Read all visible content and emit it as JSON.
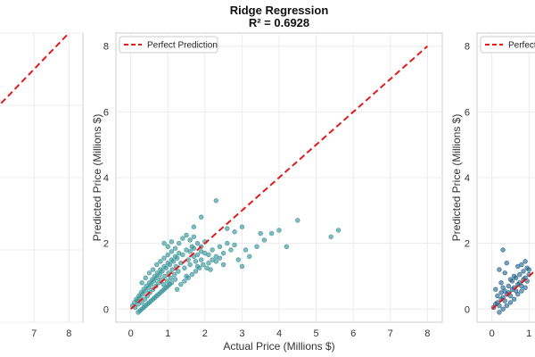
{
  "chart_data": [
    {
      "type": "scatter",
      "panel": "left",
      "title": "",
      "xlabel": "",
      "ylabel": "",
      "xticks": [
        7,
        8
      ],
      "yticks": [],
      "xlim": [
        0,
        8
      ],
      "ylim": [
        0,
        8
      ],
      "reference_line": {
        "name": "Perfect Prediction",
        "x": [
          0,
          8
        ],
        "y": [
          0,
          8
        ],
        "color": "#e31a1c",
        "style": "dashed"
      },
      "series": [
        {
          "points": []
        }
      ]
    },
    {
      "type": "scatter",
      "panel": "center",
      "title": "Ridge Regression",
      "subtitle": "R² = 0.6928",
      "xlabel": "Actual Price (Millions $)",
      "ylabel": "Predicted Price (Millions $)",
      "xticks": [
        0,
        1,
        2,
        3,
        4,
        5,
        6,
        7,
        8
      ],
      "yticks": [
        0,
        2,
        4,
        6,
        8
      ],
      "xlim": [
        -0.4,
        8.4
      ],
      "ylim": [
        -0.4,
        8.4
      ],
      "grid": true,
      "legend": {
        "position": "top-left",
        "label": "Perfect Prediction"
      },
      "reference_line": {
        "name": "Perfect Prediction",
        "x": [
          0,
          8
        ],
        "y": [
          0,
          8
        ],
        "color": "#e31a1c",
        "style": "dashed"
      },
      "point_color": "#2f8f95",
      "series": [
        {
          "points": [
            [
              0.05,
              0.1
            ],
            [
              0.1,
              0.2
            ],
            [
              0.12,
              0.05
            ],
            [
              0.15,
              0.3
            ],
            [
              0.18,
              0.25
            ],
            [
              0.2,
              0.15
            ],
            [
              0.22,
              0.4
            ],
            [
              0.25,
              0.35
            ],
            [
              0.28,
              0.5
            ],
            [
              0.3,
              0.2
            ],
            [
              0.32,
              0.45
            ],
            [
              0.35,
              0.6
            ],
            [
              0.38,
              0.3
            ],
            [
              0.4,
              0.55
            ],
            [
              0.42,
              0.7
            ],
            [
              0.45,
              0.4
            ],
            [
              0.48,
              0.65
            ],
            [
              0.5,
              0.8
            ],
            [
              0.52,
              0.5
            ],
            [
              0.55,
              0.75
            ],
            [
              0.58,
              0.9
            ],
            [
              0.6,
              0.6
            ],
            [
              0.62,
              0.85
            ],
            [
              0.65,
              1.0
            ],
            [
              0.68,
              0.7
            ],
            [
              0.7,
              0.95
            ],
            [
              0.72,
              1.1
            ],
            [
              0.75,
              0.8
            ],
            [
              0.78,
              1.05
            ],
            [
              0.8,
              1.2
            ],
            [
              0.82,
              0.9
            ],
            [
              0.85,
              1.15
            ],
            [
              0.88,
              0.75
            ],
            [
              0.9,
              1.3
            ],
            [
              0.92,
              1.0
            ],
            [
              0.95,
              1.25
            ],
            [
              0.98,
              0.85
            ],
            [
              1.0,
              1.4
            ],
            [
              1.02,
              1.1
            ],
            [
              1.05,
              1.35
            ],
            [
              1.08,
              0.95
            ],
            [
              1.1,
              1.5
            ],
            [
              1.12,
              1.2
            ],
            [
              1.15,
              1.45
            ],
            [
              1.18,
              1.05
            ],
            [
              1.2,
              1.6
            ],
            [
              1.22,
              1.3
            ],
            [
              1.25,
              1.55
            ],
            [
              1.28,
              1.15
            ],
            [
              1.3,
              1.7
            ],
            [
              1.35,
              1.4
            ],
            [
              1.4,
              1.65
            ],
            [
              1.45,
              1.25
            ],
            [
              1.5,
              1.8
            ],
            [
              1.55,
              1.5
            ],
            [
              1.6,
              1.35
            ],
            [
              1.65,
              1.9
            ],
            [
              1.7,
              1.6
            ],
            [
              1.75,
              1.45
            ],
            [
              1.8,
              2.0
            ],
            [
              0.3,
              0.0
            ],
            [
              0.4,
              0.1
            ],
            [
              0.5,
              0.2
            ],
            [
              0.6,
              0.3
            ],
            [
              0.7,
              0.4
            ],
            [
              0.8,
              0.5
            ],
            [
              0.9,
              0.6
            ],
            [
              1.0,
              0.7
            ],
            [
              1.1,
              0.8
            ],
            [
              1.2,
              0.9
            ],
            [
              0.2,
              -0.1
            ],
            [
              0.25,
              -0.05
            ],
            [
              0.35,
              0.05
            ],
            [
              0.45,
              0.15
            ],
            [
              0.55,
              0.25
            ],
            [
              0.65,
              0.35
            ],
            [
              0.75,
              0.45
            ],
            [
              0.85,
              0.55
            ],
            [
              0.95,
              0.65
            ],
            [
              1.05,
              0.75
            ],
            [
              0.6,
              1.2
            ],
            [
              0.7,
              1.35
            ],
            [
              0.8,
              1.45
            ],
            [
              0.9,
              1.55
            ],
            [
              1.0,
              1.65
            ],
            [
              1.1,
              1.75
            ],
            [
              1.2,
              1.85
            ],
            [
              0.5,
              1.1
            ],
            [
              0.4,
              0.95
            ],
            [
              0.3,
              0.8
            ],
            [
              1.9,
              1.5
            ],
            [
              2.0,
              1.7
            ],
            [
              2.1,
              1.4
            ],
            [
              2.2,
              1.8
            ],
            [
              2.3,
              1.6
            ],
            [
              2.4,
              1.9
            ],
            [
              2.5,
              1.7
            ],
            [
              2.6,
              2.0
            ],
            [
              2.7,
              1.8
            ],
            [
              2.8,
              1.95
            ],
            [
              1.6,
              2.1
            ],
            [
              1.7,
              2.2
            ],
            [
              1.8,
              1.3
            ],
            [
              1.9,
              1.9
            ],
            [
              2.0,
              2.05
            ],
            [
              2.1,
              1.65
            ],
            [
              2.2,
              1.5
            ],
            [
              2.3,
              1.45
            ],
            [
              2.4,
              1.55
            ],
            [
              2.5,
              1.35
            ],
            [
              1.25,
              0.6
            ],
            [
              1.35,
              0.75
            ],
            [
              1.45,
              0.85
            ],
            [
              1.55,
              0.95
            ],
            [
              1.65,
              1.05
            ],
            [
              1.75,
              1.15
            ],
            [
              1.85,
              1.25
            ],
            [
              1.95,
              1.35
            ],
            [
              2.05,
              1.25
            ],
            [
              2.15,
              1.2
            ],
            [
              0.9,
              2.0
            ],
            [
              1.0,
              1.9
            ],
            [
              1.1,
              2.05
            ],
            [
              1.3,
              2.0
            ],
            [
              1.4,
              2.15
            ],
            [
              1.5,
              2.25
            ],
            [
              1.6,
              1.75
            ],
            [
              1.7,
              1.85
            ],
            [
              1.8,
              1.65
            ],
            [
              1.9,
              1.75
            ],
            [
              2.9,
              1.5
            ],
            [
              3.0,
              1.3
            ],
            [
              3.1,
              1.8
            ],
            [
              3.2,
              1.6
            ],
            [
              3.4,
              1.9
            ],
            [
              3.5,
              2.3
            ],
            [
              3.6,
              2.1
            ],
            [
              3.8,
              2.3
            ],
            [
              4.0,
              2.4
            ],
            [
              4.2,
              1.9
            ],
            [
              4.5,
              2.7
            ],
            [
              5.4,
              2.2
            ],
            [
              5.6,
              2.4
            ],
            [
              2.3,
              3.3
            ],
            [
              1.9,
              2.8
            ],
            [
              1.7,
              2.5
            ],
            [
              3.0,
              2.5
            ],
            [
              2.8,
              2.35
            ],
            [
              2.6,
              2.45
            ],
            [
              1.5,
              1.0
            ]
          ]
        }
      ]
    },
    {
      "type": "scatter",
      "panel": "right",
      "title": "",
      "xlabel": "",
      "ylabel": "Predicted Price (Millions $)",
      "xticks": [
        0,
        1
      ],
      "yticks": [
        0,
        2,
        4,
        6,
        8
      ],
      "xlim": [
        -0.4,
        8.4
      ],
      "ylim": [
        -0.4,
        8.4
      ],
      "legend": {
        "position": "top-left",
        "label": "Perfect"
      },
      "reference_line": {
        "name": "Perfect",
        "x": [
          0,
          8
        ],
        "y": [
          0,
          8
        ],
        "color": "#e31a1c",
        "style": "dashed"
      },
      "point_color": "#1f5f8b",
      "series": [
        {
          "points": [
            [
              0.05,
              0.05
            ],
            [
              0.1,
              0.15
            ],
            [
              0.15,
              0.2
            ],
            [
              0.2,
              0.1
            ],
            [
              0.25,
              0.3
            ],
            [
              0.3,
              0.35
            ],
            [
              0.35,
              0.25
            ],
            [
              0.4,
              0.45
            ],
            [
              0.45,
              0.5
            ],
            [
              0.5,
              0.4
            ],
            [
              0.55,
              0.6
            ],
            [
              0.6,
              0.65
            ],
            [
              0.65,
              0.55
            ],
            [
              0.7,
              0.75
            ],
            [
              0.75,
              0.8
            ],
            [
              0.8,
              0.7
            ],
            [
              0.85,
              0.9
            ],
            [
              0.9,
              0.95
            ],
            [
              0.95,
              0.85
            ],
            [
              1.0,
              1.05
            ],
            [
              0.2,
              -0.1
            ],
            [
              0.3,
              0.0
            ],
            [
              0.4,
              0.1
            ],
            [
              0.5,
              0.2
            ],
            [
              0.6,
              0.3
            ],
            [
              0.7,
              0.45
            ],
            [
              0.8,
              0.55
            ],
            [
              0.9,
              0.65
            ],
            [
              0.35,
              0.55
            ],
            [
              0.45,
              0.7
            ],
            [
              0.55,
              0.85
            ],
            [
              0.65,
              0.95
            ],
            [
              0.75,
              1.05
            ],
            [
              0.85,
              1.15
            ],
            [
              0.95,
              1.25
            ],
            [
              0.15,
              0.4
            ],
            [
              0.25,
              0.5
            ],
            [
              0.3,
              0.65
            ],
            [
              0.5,
              0.9
            ],
            [
              0.6,
              1.0
            ],
            [
              0.3,
              1.8
            ],
            [
              0.4,
              1.4
            ],
            [
              0.2,
              1.2
            ],
            [
              0.1,
              0.6
            ],
            [
              0.35,
              1.1
            ],
            [
              0.7,
              1.3
            ],
            [
              0.8,
              1.35
            ],
            [
              0.9,
              1.45
            ],
            [
              1.0,
              1.2
            ],
            [
              0.25,
              0.8
            ]
          ]
        }
      ]
    }
  ]
}
